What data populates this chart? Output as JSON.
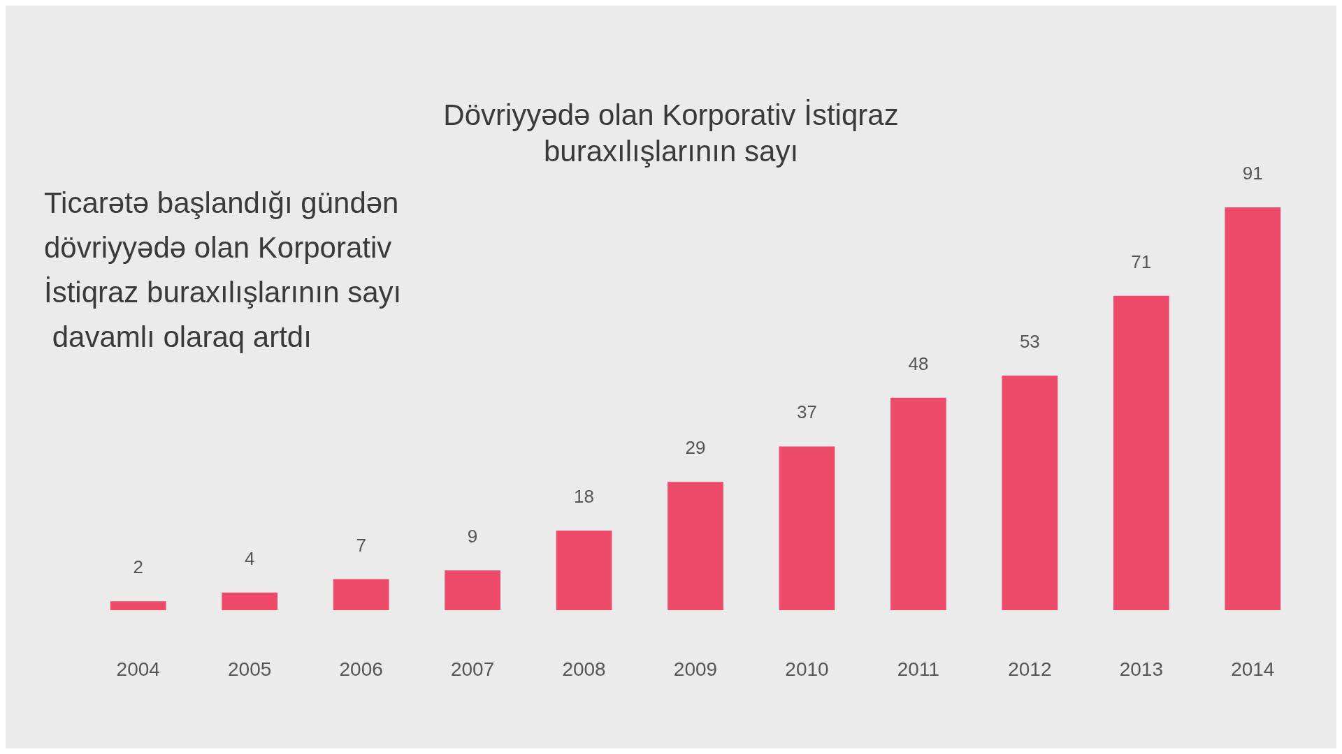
{
  "chart_data": {
    "type": "bar",
    "title": "Dövriyyədə olan Korporativ İstiqraz\nburaxılışlarının sayı",
    "annotations": [
      "Ticarətə başlandığı gündən dövriyyədə olan Korporativ İstiqraz buraxılışlarının sayı davamlı olaraq artdı"
    ],
    "categories": [
      "2004",
      "2005",
      "2006",
      "2007",
      "2008",
      "2009",
      "2010",
      "2011",
      "2012",
      "2013",
      "2014"
    ],
    "values": [
      2,
      4,
      7,
      9,
      18,
      29,
      37,
      48,
      53,
      71,
      91
    ],
    "color": "#ee4b6a",
    "data_labels": true
  }
}
